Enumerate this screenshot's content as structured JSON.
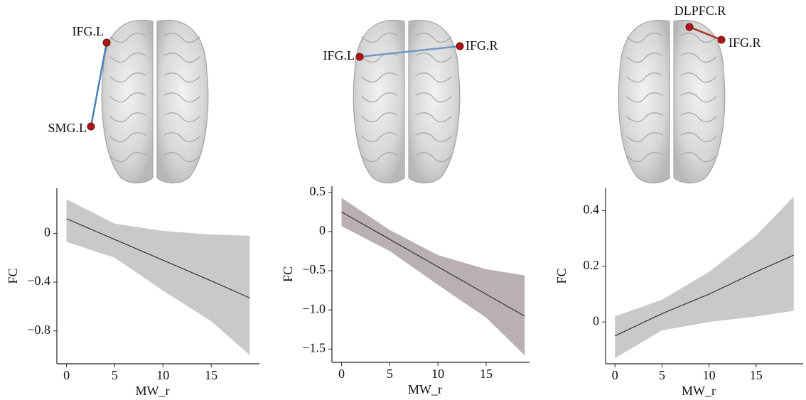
{
  "chart_data": [
    {
      "type": "line",
      "nodes": [
        {
          "label": "IFG.L"
        },
        {
          "label": "SMG.L"
        }
      ],
      "edge_color": "#4a7fb5",
      "node_color": "#b01515",
      "x": [
        0,
        5,
        10,
        15,
        19
      ],
      "series": [
        {
          "color": "#333333",
          "values": [
            0.12,
            -0.05,
            -0.22,
            -0.39,
            -0.53
          ]
        }
      ],
      "band": {
        "color": "#c9c8ca",
        "lower": [
          -0.07,
          -0.2,
          -0.47,
          -0.72,
          -1.0
        ],
        "upper": [
          0.28,
          0.08,
          0.02,
          -0.01,
          -0.02
        ]
      },
      "xlabel": "MW_r",
      "ylabel": "FC",
      "xlim": [
        -1,
        20
      ],
      "ylim": [
        -1.07,
        0.37
      ],
      "xticks": [
        0,
        5,
        10,
        15
      ],
      "yticks": [
        0,
        {
          "value": -0.4,
          "label": "−0.4"
        },
        {
          "value": -0.8,
          "label": "−0.8"
        }
      ]
    },
    {
      "type": "line",
      "nodes": [
        {
          "label": "IFG.L"
        },
        {
          "label": "IFG.R"
        }
      ],
      "edge_color": "#6f98c4",
      "node_color": "#b01515",
      "x": [
        0,
        5,
        10,
        15,
        19
      ],
      "series": [
        {
          "color": "#333333",
          "values": [
            0.25,
            -0.1,
            -0.45,
            -0.8,
            -1.08
          ]
        }
      ],
      "band": {
        "color": "#b9b1b1",
        "lower": [
          0.07,
          -0.25,
          -0.68,
          -1.1,
          -1.58
        ],
        "upper": [
          0.43,
          0.02,
          -0.3,
          -0.48,
          -0.56
        ]
      },
      "xlabel": "MW_r",
      "ylabel": "FC",
      "xlim": [
        -1,
        19.5
      ],
      "ylim": [
        -1.67,
        0.58
      ],
      "xticks": [
        0,
        5,
        10,
        15
      ],
      "yticks": [
        0.5,
        0,
        {
          "value": -0.5,
          "label": "−0.5"
        },
        {
          "value": -1.0,
          "label": "−1.0"
        },
        {
          "value": -1.5,
          "label": "−1.5"
        }
      ]
    },
    {
      "type": "line",
      "nodes": [
        {
          "label": "DLPFC.R"
        },
        {
          "label": "IFG.R"
        }
      ],
      "edge_color": "#a83228",
      "node_color": "#b01515",
      "x": [
        0,
        5,
        10,
        15,
        19
      ],
      "series": [
        {
          "color": "#333333",
          "values": [
            -0.05,
            0.03,
            0.1,
            0.18,
            0.24
          ]
        }
      ],
      "band": {
        "color": "#c9c8ca",
        "lower": [
          -0.13,
          -0.03,
          0.0,
          0.02,
          0.04
        ],
        "upper": [
          0.02,
          0.08,
          0.18,
          0.31,
          0.45
        ]
      },
      "xlabel": "MW_r",
      "ylabel": "FC",
      "xlim": [
        -1,
        20
      ],
      "ylim": [
        -0.15,
        0.48
      ],
      "xticks": [
        0,
        5,
        10,
        15
      ],
      "yticks": [
        0.4,
        0.2,
        0
      ]
    }
  ]
}
